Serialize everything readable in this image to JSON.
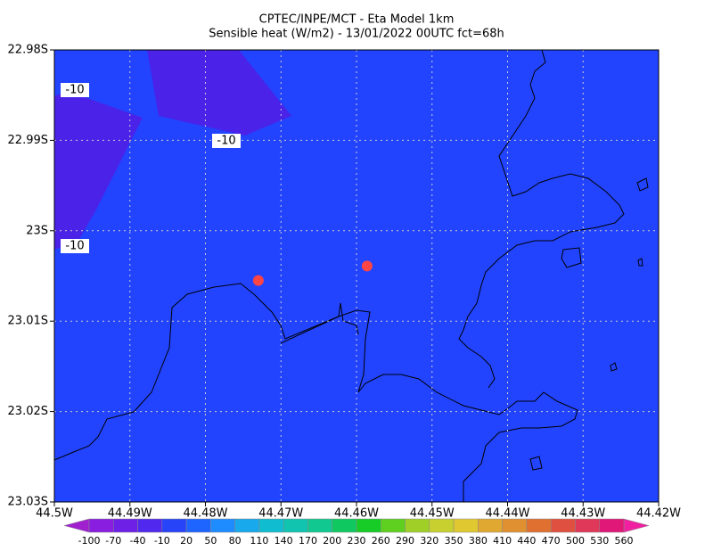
{
  "chart_data": {
    "type": "map",
    "title": "CPTEC/INPE/MCT -  Eta Model 1km",
    "subtitle": "Sensible heat (W/m2) - 13/01/2022 00UTC fct=68h",
    "xlim": [
      -44.5,
      -44.42
    ],
    "ylim": [
      -23.03,
      -22.98
    ],
    "xticks": [
      {
        "value": -44.5,
        "label": "44.5W"
      },
      {
        "value": -44.49,
        "label": "44.49W"
      },
      {
        "value": -44.48,
        "label": "44.48W"
      },
      {
        "value": -44.47,
        "label": "44.47W"
      },
      {
        "value": -44.46,
        "label": "44.46W"
      },
      {
        "value": -44.45,
        "label": "44.45W"
      },
      {
        "value": -44.44,
        "label": "44.44W"
      },
      {
        "value": -44.43,
        "label": "44.43W"
      },
      {
        "value": -44.42,
        "label": "44.42W"
      }
    ],
    "yticks": [
      {
        "value": -22.98,
        "label": "22.98S"
      },
      {
        "value": -22.99,
        "label": "22.99S"
      },
      {
        "value": -23.0,
        "label": "23S"
      },
      {
        "value": -23.01,
        "label": "23.01S"
      },
      {
        "value": -23.02,
        "label": "23.02S"
      },
      {
        "value": -23.03,
        "label": "23.03S"
      }
    ],
    "grid": true,
    "field_color": "#2244ff",
    "contour_labels": [
      "-10",
      "-10",
      "-10"
    ],
    "points": [
      {
        "lon": -44.473,
        "lat": -23.0055,
        "color": "#ff4444"
      },
      {
        "lon": -44.4586,
        "lat": -23.0039,
        "color": "#ff4444"
      }
    ],
    "colorbar": {
      "levels": [
        -100,
        -70,
        -40,
        -10,
        20,
        50,
        80,
        110,
        140,
        170,
        200,
        230,
        260,
        290,
        320,
        350,
        380,
        410,
        440,
        470,
        500,
        530,
        560
      ],
      "colors": [
        "#8a1ee0",
        "#6e20e6",
        "#5028ee",
        "#2844f8",
        "#1e64ff",
        "#1e8cff",
        "#18a8ec",
        "#10bcd0",
        "#10c4b0",
        "#10c890",
        "#10c860",
        "#18cc28",
        "#60d020",
        "#a0d028",
        "#c8d030",
        "#e0c830",
        "#e0a830",
        "#e09030",
        "#e07030",
        "#e05040",
        "#e03858",
        "#e01878"
      ],
      "under_color": "#a020d0",
      "over_color": "#f020a0"
    }
  }
}
